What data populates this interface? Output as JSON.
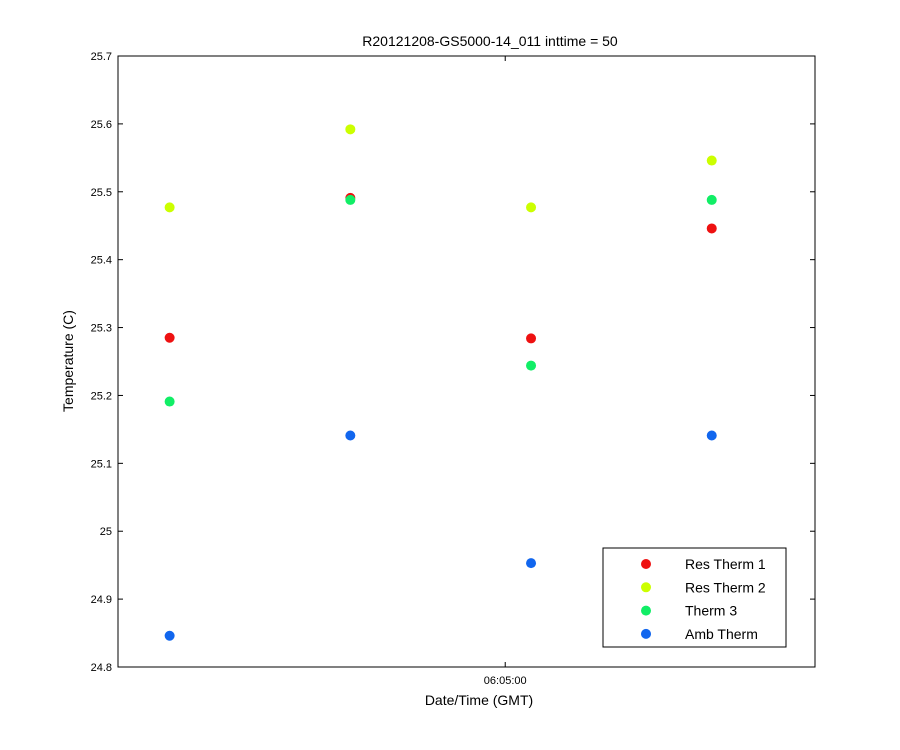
{
  "chart_data": {
    "type": "scatter",
    "title": "R20121208-GS5000-14_011 inttime = 50",
    "xlabel": "Date/Time (GMT)",
    "ylabel": "Temperature (C)",
    "ylim": [
      24.8,
      25.7
    ],
    "yticks": [
      24.8,
      24.9,
      25,
      25.1,
      25.2,
      25.3,
      25.4,
      25.5,
      25.6,
      25.7
    ],
    "ytick_labels": [
      "24.8",
      "24.9",
      "25",
      "25.1",
      "25.2",
      "25.3",
      "25.4",
      "25.5",
      "25.6",
      "25.7"
    ],
    "xlim": [
      "06:04:45",
      "06:05:12"
    ],
    "xticks": [
      "06:05:00"
    ],
    "xtick_labels": [
      "06:05:00"
    ],
    "x": [
      "06:04:47",
      "06:04:54",
      "06:05:01",
      "06:05:08"
    ],
    "series": [
      {
        "name": "Res Therm 1",
        "color": "#ee1111",
        "values": [
          25.285,
          25.491,
          25.284,
          25.446
        ]
      },
      {
        "name": "Res Therm 2",
        "color": "#ccff00",
        "values": [
          25.477,
          25.592,
          25.477,
          25.546
        ]
      },
      {
        "name": "Therm 3",
        "color": "#11ee66",
        "values": [
          25.191,
          25.488,
          25.244,
          25.488
        ]
      },
      {
        "name": "Amb Therm",
        "color": "#1166ee",
        "values": [
          24.846,
          25.141,
          24.953,
          25.141
        ]
      }
    ],
    "legend_position": "bottom-right",
    "grid": false
  }
}
